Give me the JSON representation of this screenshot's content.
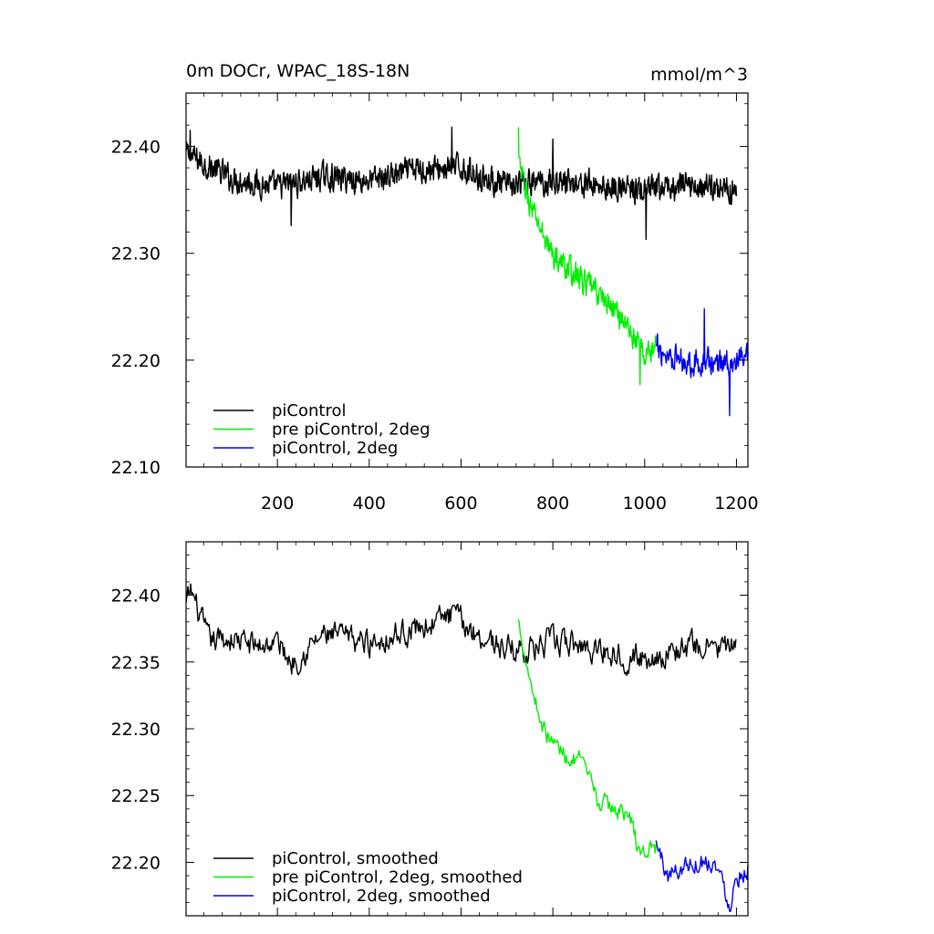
{
  "chart_data": [
    {
      "type": "line",
      "title_left": "0m DOCr, WPAC_18S-18N",
      "title_right": "mmol/m^3",
      "xlim": [
        1,
        1225
      ],
      "ylim": [
        22.1,
        22.45
      ],
      "x_ticks": [
        200,
        400,
        600,
        800,
        1000,
        1200
      ],
      "x_tick_labels": [
        "200",
        "400",
        "600",
        "800",
        "1000",
        "1200"
      ],
      "y_ticks": [
        22.1,
        22.2,
        22.3,
        22.4
      ],
      "y_tick_labels": [
        "22.10",
        "22.20",
        "22.30",
        "22.40"
      ],
      "grid": false,
      "legend_position": "bottom-left",
      "series": [
        {
          "name": "piControl",
          "color": "#000000",
          "x_start": 1,
          "x_end": 1200,
          "anchors": [
            [
              1,
              22.393
            ],
            [
              100,
              22.37
            ],
            [
              200,
              22.362
            ],
            [
              300,
              22.372
            ],
            [
              400,
              22.368
            ],
            [
              500,
              22.378
            ],
            [
              600,
              22.38
            ],
            [
              700,
              22.362
            ],
            [
              800,
              22.368
            ],
            [
              900,
              22.364
            ],
            [
              1000,
              22.358
            ],
            [
              1100,
              22.364
            ],
            [
              1200,
              22.36
            ]
          ],
          "noise_amplitude": 0.018,
          "extremes": [
            [
              10,
              22.415
            ],
            [
              230,
              22.326
            ],
            [
              580,
              22.418
            ],
            [
              800,
              22.407
            ],
            [
              1003,
              22.313
            ]
          ]
        },
        {
          "name": "pre piControl, 2deg",
          "color": "#00ee00",
          "x_start": 725,
          "x_end": 1025,
          "anchors": [
            [
              725,
              22.385
            ],
            [
              750,
              22.345
            ],
            [
              800,
              22.298
            ],
            [
              850,
              22.28
            ],
            [
              900,
              22.262
            ],
            [
              950,
              22.24
            ],
            [
              1000,
              22.205
            ],
            [
              1025,
              22.212
            ]
          ],
          "noise_amplitude": 0.017,
          "extremes": [
            [
              725,
              22.418
            ],
            [
              990,
              22.177
            ]
          ]
        },
        {
          "name": "piControl, 2deg",
          "color": "#0000ee",
          "x_start": 1025,
          "x_end": 1225,
          "anchors": [
            [
              1025,
              22.21
            ],
            [
              1100,
              22.198
            ],
            [
              1200,
              22.198
            ],
            [
              1225,
              22.2
            ]
          ],
          "noise_amplitude": 0.018,
          "extremes": [
            [
              1130,
              22.248
            ],
            [
              1185,
              22.148
            ]
          ]
        }
      ]
    },
    {
      "type": "line",
      "xlim": [
        1,
        1225
      ],
      "ylim": [
        22.16,
        22.44
      ],
      "x_ticks": [
        200,
        400,
        600,
        800,
        1000,
        1200
      ],
      "y_ticks": [
        22.2,
        22.25,
        22.3,
        22.35,
        22.4
      ],
      "y_tick_labels": [
        "22.20",
        "22.25",
        "22.30",
        "22.35",
        "22.40"
      ],
      "grid": false,
      "legend_position": "bottom-left",
      "series": [
        {
          "name": "piControl, smoothed",
          "color": "#000000",
          "x_start": 1,
          "x_end": 1200,
          "anchors": [
            [
              1,
              22.392
            ],
            [
              12,
              22.403
            ],
            [
              50,
              22.365
            ],
            [
              100,
              22.368
            ],
            [
              150,
              22.362
            ],
            [
              200,
              22.365
            ],
            [
              230,
              22.35
            ],
            [
              300,
              22.37
            ],
            [
              400,
              22.365
            ],
            [
              500,
              22.375
            ],
            [
              580,
              22.385
            ],
            [
              640,
              22.37
            ],
            [
              700,
              22.36
            ],
            [
              760,
              22.36
            ],
            [
              800,
              22.365
            ],
            [
              900,
              22.36
            ],
            [
              1000,
              22.352
            ],
            [
              1100,
              22.362
            ],
            [
              1200,
              22.36
            ]
          ],
          "noise_amplitude": 0.01
        },
        {
          "name": "pre piControl, 2deg, smoothed",
          "color": "#00ee00",
          "x_start": 725,
          "x_end": 1025,
          "anchors": [
            [
              725,
              22.38
            ],
            [
              740,
              22.356
            ],
            [
              755,
              22.33
            ],
            [
              780,
              22.3
            ],
            [
              800,
              22.29
            ],
            [
              830,
              22.28
            ],
            [
              860,
              22.275
            ],
            [
              880,
              22.26
            ],
            [
              900,
              22.245
            ],
            [
              930,
              22.24
            ],
            [
              960,
              22.238
            ],
            [
              975,
              22.225
            ],
            [
              990,
              22.205
            ],
            [
              1010,
              22.21
            ],
            [
              1025,
              22.212
            ]
          ],
          "noise_amplitude": 0.007
        },
        {
          "name": "piControl, 2deg, smoothed",
          "color": "#0000ee",
          "x_start": 1025,
          "x_end": 1225,
          "anchors": [
            [
              1025,
              22.214
            ],
            [
              1050,
              22.19
            ],
            [
              1100,
              22.2
            ],
            [
              1150,
              22.202
            ],
            [
              1185,
              22.17
            ],
            [
              1200,
              22.19
            ],
            [
              1225,
              22.197
            ]
          ],
          "noise_amplitude": 0.008
        }
      ]
    }
  ]
}
